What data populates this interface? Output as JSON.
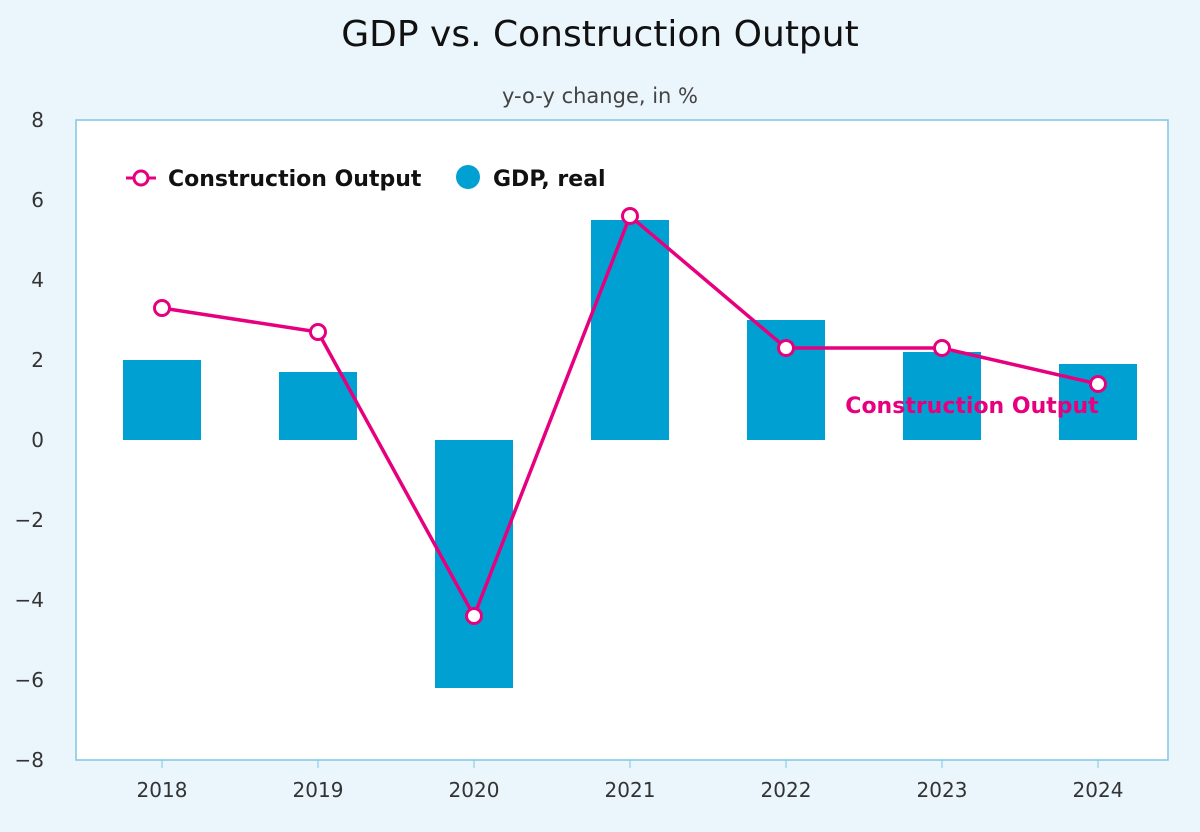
{
  "chart_data": {
    "type": "bar+line",
    "title": "GDP vs. Construction Output",
    "subtitle": "y-o-y change, in %",
    "categories": [
      "2018",
      "2019",
      "2020",
      "2021",
      "2022",
      "2023",
      "2024"
    ],
    "ylim": [
      -8,
      8
    ],
    "yticks": [
      8,
      6,
      4,
      2,
      0,
      -2,
      -4,
      -6,
      -8
    ],
    "grid": false,
    "legend_placement": "top-left",
    "series": [
      {
        "name": "Construction Output",
        "type": "line",
        "color": "#e6007e",
        "values": [
          3.3,
          2.7,
          -4.4,
          5.6,
          2.3,
          2.3,
          1.4
        ]
      },
      {
        "name": "GDP, real",
        "type": "bar",
        "color": "#00a0d2",
        "values": [
          2.0,
          1.7,
          -6.2,
          5.5,
          3.0,
          2.2,
          1.9
        ]
      }
    ],
    "annotations": [
      {
        "text": "Construction Output",
        "series": "Construction Output",
        "at": "2024"
      }
    ]
  }
}
